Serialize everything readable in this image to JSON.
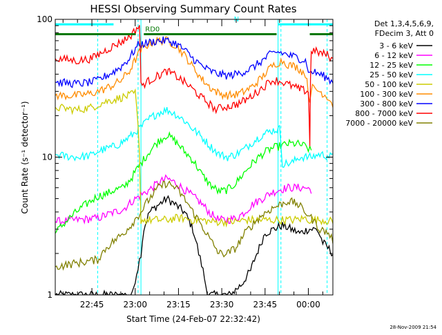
{
  "chart_data": {
    "type": "line",
    "title": "HESSI Observing Summary Count Rates",
    "xlabel": "Start Time (24-Feb-07 22:32:42)",
    "ylabel": "Count Rate (s⁻¹ detector⁻¹)",
    "yscale": "log",
    "ylim": [
      1,
      100
    ],
    "xlim_minutes": [
      -12.7,
      83.5
    ],
    "grid": false,
    "legend_position": "top-right",
    "legend_header": [
      "Det 1,3,4,5,6,9,",
      "FDecim 3, Att 0"
    ],
    "x_tick_labels": [
      {
        "minute": 0,
        "label": "22:45"
      },
      {
        "minute": 15,
        "label": "23:00"
      },
      {
        "minute": 30,
        "label": "23:15"
      },
      {
        "minute": 45,
        "label": "23:30"
      },
      {
        "minute": 60,
        "label": "23:45"
      },
      {
        "minute": 75,
        "label": "00:00"
      }
    ],
    "y_tick_labels": [
      {
        "value": 1,
        "label": "1"
      },
      {
        "value": 10,
        "label": "10"
      },
      {
        "value": 100,
        "label": "100"
      }
    ],
    "vertical_markers": [
      {
        "minute": 17.0,
        "color": "#00ffff",
        "style": "solid"
      },
      {
        "minute": 64.5,
        "color": "#00ffff",
        "style": "solid"
      },
      {
        "minute": 2.0,
        "color": "#00ffff",
        "style": "dashed"
      },
      {
        "minute": 16.0,
        "color": "#00ffff",
        "style": "dashed"
      },
      {
        "minute": 65.5,
        "color": "#00ffff",
        "style": "dashed"
      },
      {
        "minute": 81.5,
        "color": "#00ffff",
        "style": "dashed"
      }
    ],
    "flag_bars": [
      {
        "label": "N",
        "color": "#00ffff",
        "y": 92,
        "segments": [
          [
            -12.7,
            7.5
          ],
          [
            64.5,
            83.5
          ]
        ]
      },
      {
        "label": "RD0",
        "color": "#007700",
        "y": 78,
        "segments": [
          [
            -12.7,
            15.2
          ],
          [
            18,
            64
          ],
          [
            75.5,
            83.5
          ]
        ]
      }
    ],
    "series": [
      {
        "name": "3 - 6 keV",
        "color": "#000000",
        "x": [
          -12.7,
          2,
          3,
          6,
          9,
          11,
          12.5,
          14,
          16,
          17,
          18,
          20,
          23,
          26,
          29,
          32,
          35,
          37,
          38.5,
          40,
          42,
          45,
          48,
          52,
          55,
          58,
          60,
          63,
          66,
          69,
          72,
          75,
          78,
          80,
          83.5
        ],
        "y": [
          1,
          1,
          1,
          1,
          1,
          1,
          1,
          1,
          1.6,
          2,
          3,
          4,
          4.5,
          5,
          4.5,
          4,
          3,
          2,
          1.5,
          1,
          1,
          1,
          1,
          1.2,
          1.5,
          2.2,
          2.8,
          3,
          3.2,
          3,
          2.8,
          3,
          3,
          2.4,
          2
        ]
      },
      {
        "name": "6 - 12 keV",
        "color": "#ff00ff",
        "x": [
          -12.7,
          2,
          5,
          8,
          11,
          14,
          17,
          20,
          23,
          26,
          29,
          32,
          35,
          38,
          41,
          44,
          47,
          50,
          53,
          56,
          59,
          62,
          65,
          68,
          71,
          74,
          76
        ],
        "y": [
          3.4,
          3.6,
          3.8,
          4,
          4.2,
          4.8,
          5.3,
          5.8,
          6.5,
          7,
          6.5,
          5.8,
          5.2,
          4.6,
          3.9,
          3.5,
          3.5,
          3.6,
          4,
          4.6,
          5,
          5.5,
          5.8,
          6,
          6,
          6,
          5.8
        ]
      },
      {
        "name": "12 - 25 keV",
        "color": "#00ff00",
        "x": [
          -12.7,
          2,
          5,
          8,
          11,
          14,
          17,
          20,
          23,
          26,
          29,
          32,
          35,
          38,
          41,
          44,
          47,
          50,
          53,
          56,
          59,
          62,
          65,
          68,
          71,
          74,
          76
        ],
        "y": [
          2.8,
          5.2,
          5.4,
          5.8,
          6,
          7.2,
          9,
          11,
          13,
          14.5,
          13,
          11,
          9.5,
          7.5,
          6.3,
          5.6,
          5.8,
          6.5,
          7.8,
          9.2,
          10.5,
          11.5,
          12,
          12.5,
          12.5,
          12,
          11
        ]
      },
      {
        "name": "25 - 50 keV",
        "color": "#00ffff",
        "x": [
          -12.7,
          -10,
          -5,
          0,
          2,
          5,
          8,
          11,
          14,
          17,
          20,
          23,
          26,
          29,
          32,
          35,
          38,
          41,
          44,
          47,
          50,
          53,
          56,
          59,
          62,
          65,
          66,
          69,
          72,
          75,
          76,
          79,
          83.5
        ],
        "y": [
          10.5,
          10.2,
          10,
          10.3,
          11,
          11.5,
          12,
          13,
          14.5,
          16.5,
          19,
          21,
          22,
          20.5,
          18.5,
          16,
          14,
          12,
          10.5,
          10,
          10.5,
          11.5,
          13,
          14.5,
          15.5,
          16,
          9,
          9,
          10,
          10,
          10,
          10.5,
          10
        ]
      },
      {
        "name": "50 - 100 keV",
        "color": "#cccc00",
        "x": [
          -12.7,
          -5,
          0,
          2,
          4,
          7,
          10,
          13,
          15,
          17,
          20,
          23,
          26,
          29,
          32,
          35,
          38,
          41,
          44,
          47,
          50,
          53,
          56,
          59,
          62,
          64,
          66,
          70,
          74,
          75.5,
          80,
          83.5
        ],
        "y": [
          23,
          22,
          23,
          24,
          25,
          26,
          27,
          28,
          29,
          3.5,
          3.5,
          3.5,
          3.5,
          3.6,
          3.6,
          3.5,
          3.5,
          3.4,
          3.4,
          3.4,
          3.4,
          3.5,
          3.5,
          3.5,
          3.5,
          3.5,
          3.5,
          3.5,
          3.6,
          3.5,
          3.5,
          3.4
        ]
      },
      {
        "name": "100 - 300 keV",
        "color": "#ff8c00",
        "x": [
          -12.7,
          -5,
          0,
          2,
          4,
          7,
          10,
          13,
          16,
          17,
          20,
          23,
          26,
          29,
          32,
          35,
          38,
          41,
          44,
          47,
          50,
          53,
          56,
          59,
          62,
          64,
          66,
          68,
          71,
          74,
          75.5,
          76,
          79,
          82,
          83.5
        ],
        "y": [
          28,
          28,
          29,
          30,
          31,
          33,
          36,
          42,
          55,
          60,
          67,
          70,
          70,
          65,
          55,
          45,
          37,
          32,
          29,
          28,
          28.5,
          30,
          33,
          38,
          45,
          48,
          50,
          47,
          45,
          40,
          25,
          32,
          30,
          27,
          24
        ]
      },
      {
        "name": "300 - 800 keV",
        "color": "#0000ff",
        "x": [
          -12.7,
          -5,
          0,
          2,
          4,
          7,
          10,
          13,
          16,
          17,
          20,
          23,
          26,
          29,
          32,
          35,
          38,
          41,
          44,
          47,
          50,
          53,
          56,
          59,
          62,
          64,
          66,
          68,
          71,
          74,
          75.5,
          76,
          79,
          82,
          83.5
        ],
        "y": [
          35,
          34,
          35,
          36,
          38,
          41,
          45,
          52,
          65,
          66,
          68,
          70,
          70,
          67,
          60,
          52,
          46,
          42,
          40,
          39,
          40,
          42,
          45,
          50,
          56,
          58,
          57,
          55,
          53,
          50,
          40,
          42,
          40,
          37,
          35
        ]
      },
      {
        "name": "800 - 7000 keV",
        "color": "#ff0000",
        "x": [
          -12.7,
          -5,
          0,
          2,
          5,
          8,
          11,
          14,
          15.5,
          16.5,
          17,
          20,
          23,
          26,
          29,
          32,
          35,
          38,
          41,
          43,
          45,
          48,
          51,
          54,
          57,
          60,
          62,
          64,
          66,
          69,
          72,
          75,
          75.5,
          76,
          79,
          82,
          83.5
        ],
        "y": [
          52,
          50,
          52,
          55,
          60,
          65,
          70,
          78,
          86,
          90,
          33,
          36,
          39,
          42,
          39,
          35,
          31,
          27,
          24,
          22,
          23,
          23.5,
          24.5,
          26.5,
          29.5,
          33,
          36,
          36,
          35,
          33,
          31,
          30,
          12,
          60,
          57,
          55,
          50
        ]
      },
      {
        "name": "7000 - 20000 keV",
        "color": "#808000",
        "x": [
          -12.7,
          2,
          5,
          8,
          11,
          14,
          17,
          20,
          23,
          26,
          29,
          32,
          35,
          38,
          41,
          44,
          47,
          50,
          53,
          56,
          59,
          62,
          65,
          68,
          71,
          74,
          76,
          79,
          82,
          83.5
        ],
        "y": [
          1.6,
          1.8,
          2.2,
          2.5,
          2.8,
          3.3,
          4,
          5,
          6,
          6.5,
          6,
          5,
          4,
          3.2,
          2.5,
          2,
          2,
          2.2,
          2.8,
          3.3,
          3.8,
          4.2,
          4.5,
          4.8,
          4.6,
          4,
          3.6,
          3,
          2.8,
          2.5
        ]
      }
    ]
  },
  "footer": {
    "timestamp": "28-Nov-2009 21:54"
  }
}
